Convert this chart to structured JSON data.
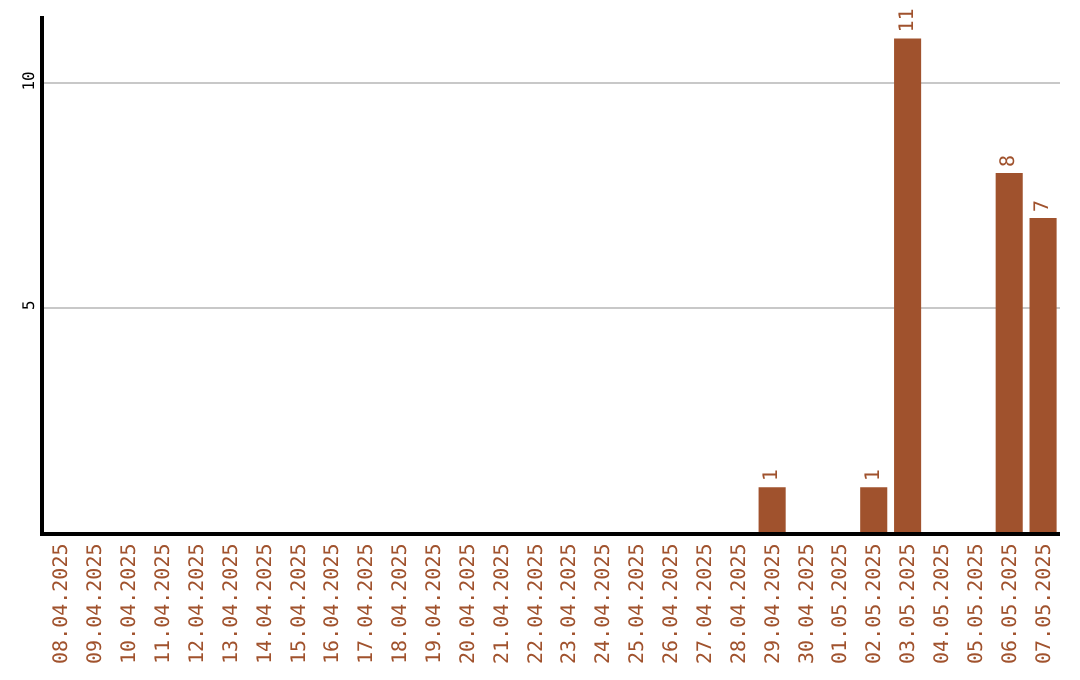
{
  "chart_data": {
    "type": "bar",
    "categories": [
      "08.04.2025",
      "09.04.2025",
      "10.04.2025",
      "11.04.2025",
      "12.04.2025",
      "13.04.2025",
      "14.04.2025",
      "15.04.2025",
      "16.04.2025",
      "17.04.2025",
      "18.04.2025",
      "19.04.2025",
      "20.04.2025",
      "21.04.2025",
      "22.04.2025",
      "23.04.2025",
      "24.04.2025",
      "25.04.2025",
      "26.04.2025",
      "27.04.2025",
      "28.04.2025",
      "29.04.2025",
      "30.04.2025",
      "01.05.2025",
      "02.05.2025",
      "03.05.2025",
      "04.05.2025",
      "05.05.2025",
      "06.05.2025",
      "07.05.2025"
    ],
    "values": [
      0,
      0,
      0,
      0,
      0,
      0,
      0,
      0,
      0,
      0,
      0,
      0,
      0,
      0,
      0,
      0,
      0,
      0,
      0,
      0,
      0,
      1,
      0,
      0,
      1,
      11,
      0,
      0,
      8,
      7
    ],
    "value_labels": [
      null,
      null,
      null,
      null,
      null,
      null,
      null,
      null,
      null,
      null,
      null,
      null,
      null,
      null,
      null,
      null,
      null,
      null,
      null,
      null,
      null,
      "1",
      null,
      null,
      "1",
      "11",
      null,
      null,
      "8",
      "7"
    ],
    "color": "#a0522d",
    "ylim": [
      0,
      11.5
    ],
    "yticks": [
      5,
      10
    ],
    "grid": "y",
    "legend": false
  }
}
